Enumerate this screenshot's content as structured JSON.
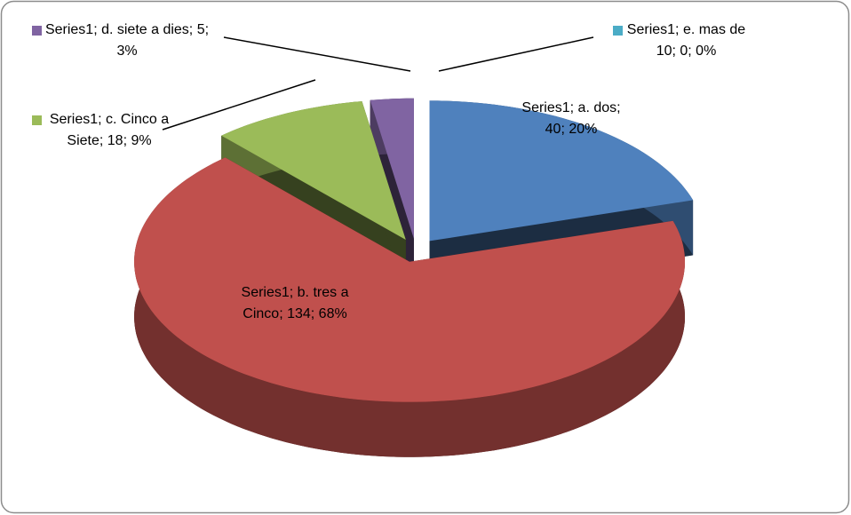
{
  "chart_data": {
    "type": "pie3d",
    "series_name": "Series1",
    "categories": [
      "a. dos",
      "b. tres a Cinco",
      "c. Cinco a Siete",
      "d. siete a dies",
      "e. mas de 10"
    ],
    "values": [
      40,
      134,
      18,
      5,
      0
    ],
    "value_labels": [
      "Series1; a. dos; 40; 20%",
      "Series1; b. tres a Cinco; 134; 68%",
      "Series1; c. Cinco a Siete; 18; 9%",
      "Series1; d. siete a dies; 5; 3%",
      "Series1; e. mas de 10; 0; 0%"
    ],
    "colors": [
      "#4f81bd",
      "#c0504d",
      "#9bbb59",
      "#8064a2",
      "#4bacc6"
    ]
  }
}
